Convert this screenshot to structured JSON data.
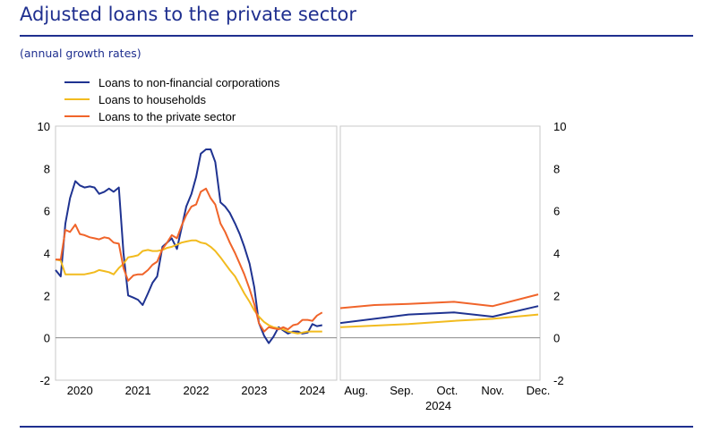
{
  "header": {
    "title": "Adjusted loans to the private sector",
    "subtitle": "(annual growth rates)"
  },
  "chart_data": {
    "type": "line",
    "title": "Adjusted loans to the private sector",
    "subtitle": "(annual growth rates)",
    "ylim": [
      -2,
      10
    ],
    "yticks": [
      -2,
      0,
      2,
      4,
      6,
      8,
      10
    ],
    "legend_position": "top-left",
    "panels": [
      {
        "name": "monthly",
        "x_range": [
          2019.58,
          2024.42
        ],
        "xtick_labels": [
          {
            "label": "2020",
            "x": 2020.0
          },
          {
            "label": "2021",
            "x": 2021.0
          },
          {
            "label": "2022",
            "x": 2022.0
          },
          {
            "label": "2023",
            "x": 2023.0
          },
          {
            "label": "2024",
            "x": 2024.0
          }
        ]
      },
      {
        "name": "daily-2024",
        "x_range": [
          0,
          4.35
        ],
        "xtick_labels": [
          {
            "label": "Aug.",
            "x": 0.35
          },
          {
            "label": "Sep.",
            "x": 1.35
          },
          {
            "label": "Oct.",
            "x": 2.35
          },
          {
            "label": "Nov.",
            "x": 3.35
          },
          {
            "label": "Dec.",
            "x": 4.35
          }
        ],
        "year_label": "2024"
      }
    ],
    "series": [
      {
        "name": "Loans to non-financial corporations",
        "color": "#1f3391",
        "panel1": {
          "x": [
            2019.58,
            2019.67,
            2019.75,
            2019.83,
            2019.92,
            2020.0,
            2020.08,
            2020.17,
            2020.25,
            2020.33,
            2020.42,
            2020.5,
            2020.58,
            2020.67,
            2020.75,
            2020.83,
            2020.92,
            2021.0,
            2021.08,
            2021.17,
            2021.25,
            2021.33,
            2021.42,
            2021.5,
            2021.58,
            2021.67,
            2021.75,
            2021.83,
            2021.92,
            2022.0,
            2022.08,
            2022.17,
            2022.25,
            2022.33,
            2022.42,
            2022.5,
            2022.58,
            2022.67,
            2022.75,
            2022.83,
            2022.92,
            2023.0,
            2023.08,
            2023.17,
            2023.25,
            2023.33,
            2023.42,
            2023.5,
            2023.58,
            2023.67,
            2023.75,
            2023.83,
            2023.92,
            2024.0,
            2024.08,
            2024.17
          ],
          "y": [
            3.2,
            2.9,
            5.4,
            6.6,
            7.4,
            7.2,
            7.1,
            7.15,
            7.1,
            6.8,
            6.9,
            7.05,
            6.9,
            7.1,
            4.0,
            2.0,
            1.9,
            1.8,
            1.55,
            2.1,
            2.6,
            2.9,
            4.3,
            4.5,
            4.7,
            4.2,
            5.2,
            6.2,
            6.8,
            7.6,
            8.7,
            8.9,
            8.9,
            8.3,
            6.4,
            6.2,
            5.9,
            5.4,
            4.9,
            4.3,
            3.5,
            2.4,
            0.7,
            0.1,
            -0.25,
            0.05,
            0.5,
            0.35,
            0.2,
            0.3,
            0.3,
            0.2,
            0.25,
            0.65,
            0.55,
            0.6
          ]
        },
        "panel2": {
          "x": [
            0,
            1.5,
            2.5,
            3.35,
            4.35
          ],
          "y": [
            0.7,
            1.1,
            1.2,
            1.0,
            1.5
          ]
        }
      },
      {
        "name": "Loans to households",
        "color": "#f2bb1f",
        "panel1": {
          "x": [
            2019.58,
            2019.67,
            2019.75,
            2019.83,
            2019.92,
            2020.0,
            2020.08,
            2020.17,
            2020.25,
            2020.33,
            2020.42,
            2020.5,
            2020.58,
            2020.67,
            2020.75,
            2020.83,
            2020.92,
            2021.0,
            2021.08,
            2021.17,
            2021.25,
            2021.33,
            2021.42,
            2021.5,
            2021.58,
            2021.67,
            2021.75,
            2021.83,
            2021.92,
            2022.0,
            2022.08,
            2022.17,
            2022.25,
            2022.33,
            2022.42,
            2022.5,
            2022.58,
            2022.67,
            2022.75,
            2022.83,
            2022.92,
            2023.0,
            2023.08,
            2023.17,
            2023.25,
            2023.33,
            2023.42,
            2023.5,
            2023.58,
            2023.67,
            2023.75,
            2023.83,
            2023.92,
            2024.0,
            2024.08,
            2024.17
          ],
          "y": [
            3.7,
            3.65,
            3.0,
            3.0,
            3.0,
            3.0,
            3.0,
            3.05,
            3.1,
            3.2,
            3.15,
            3.1,
            3.0,
            3.3,
            3.5,
            3.8,
            3.85,
            3.9,
            4.1,
            4.15,
            4.1,
            4.1,
            4.15,
            4.25,
            4.3,
            4.4,
            4.5,
            4.55,
            4.6,
            4.6,
            4.5,
            4.45,
            4.3,
            4.1,
            3.8,
            3.5,
            3.2,
            2.9,
            2.5,
            2.1,
            1.7,
            1.3,
            1.0,
            0.75,
            0.6,
            0.5,
            0.45,
            0.4,
            0.3,
            0.25,
            0.2,
            0.25,
            0.3,
            0.3,
            0.3,
            0.3
          ]
        },
        "panel2": {
          "x": [
            0,
            1.5,
            2.5,
            3.35,
            4.35
          ],
          "y": [
            0.5,
            0.65,
            0.8,
            0.9,
            1.1
          ]
        }
      },
      {
        "name": "Loans to the private sector",
        "color": "#f0642a",
        "panel1": {
          "x": [
            2019.58,
            2019.67,
            2019.75,
            2019.83,
            2019.92,
            2020.0,
            2020.08,
            2020.17,
            2020.25,
            2020.33,
            2020.42,
            2020.5,
            2020.58,
            2020.67,
            2020.75,
            2020.83,
            2020.92,
            2021.0,
            2021.08,
            2021.17,
            2021.25,
            2021.33,
            2021.42,
            2021.5,
            2021.58,
            2021.67,
            2021.75,
            2021.83,
            2021.92,
            2022.0,
            2022.08,
            2022.17,
            2022.25,
            2022.33,
            2022.42,
            2022.5,
            2022.58,
            2022.67,
            2022.75,
            2022.83,
            2022.92,
            2023.0,
            2023.08,
            2023.17,
            2023.25,
            2023.33,
            2023.42,
            2023.5,
            2023.58,
            2023.67,
            2023.75,
            2023.83,
            2023.92,
            2024.0,
            2024.08,
            2024.17
          ],
          "y": [
            3.7,
            3.7,
            5.1,
            5.0,
            5.35,
            4.9,
            4.85,
            4.75,
            4.7,
            4.65,
            4.75,
            4.7,
            4.5,
            4.45,
            3.3,
            2.7,
            2.95,
            3.0,
            3.0,
            3.2,
            3.45,
            3.6,
            4.2,
            4.5,
            4.85,
            4.7,
            5.3,
            5.8,
            6.2,
            6.3,
            6.9,
            7.05,
            6.6,
            6.3,
            5.4,
            5.0,
            4.5,
            4.0,
            3.5,
            3.0,
            2.3,
            1.6,
            0.7,
            0.3,
            0.5,
            0.45,
            0.4,
            0.5,
            0.4,
            0.6,
            0.65,
            0.85,
            0.85,
            0.8,
            1.05,
            1.2
          ]
        },
        "panel2": {
          "x": [
            0,
            0.75,
            1.5,
            2.5,
            3.35,
            4.35
          ],
          "y": [
            1.4,
            1.55,
            1.6,
            1.7,
            1.5,
            2.05
          ]
        }
      }
    ]
  }
}
